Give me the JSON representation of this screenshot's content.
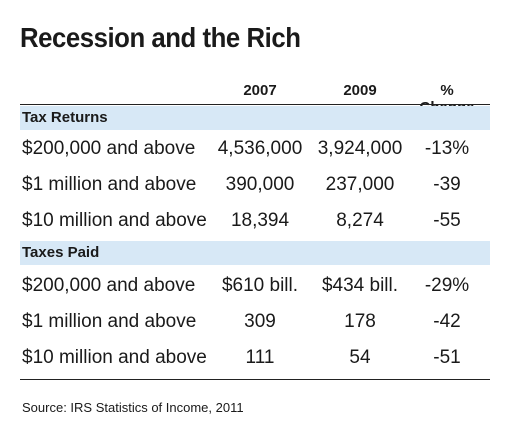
{
  "chart_data": {
    "type": "table",
    "title": "Recession and the Rich",
    "columns": [
      "",
      "2007",
      "2009",
      "% Change"
    ],
    "sections": [
      {
        "name": "Tax Returns",
        "rows": [
          {
            "label": "$200,000 and above",
            "v2007": "4,536,000",
            "v2009": "3,924,000",
            "change": "-13%"
          },
          {
            "label": "$1 million and above",
            "v2007": "390,000",
            "v2009": "237,000",
            "change": "-39"
          },
          {
            "label": "$10 million and above",
            "v2007": "18,394",
            "v2009": "8,274",
            "change": "-55"
          }
        ]
      },
      {
        "name": "Taxes Paid",
        "rows": [
          {
            "label": "$200,000 and above",
            "v2007": "$610 bill.",
            "v2009": "$434 bill.",
            "change": "-29%"
          },
          {
            "label": "$1 million and above",
            "v2007": "309",
            "v2009": "178",
            "change": "-42"
          },
          {
            "label": "$10 million and above",
            "v2007": "111",
            "v2009": "54",
            "change": "-51"
          }
        ]
      }
    ],
    "source": "Source: IRS Statistics of Income, 2011"
  },
  "colors": {
    "section_band": "#d7e8f6",
    "text": "#1a1a1a",
    "rule": "#222222"
  }
}
